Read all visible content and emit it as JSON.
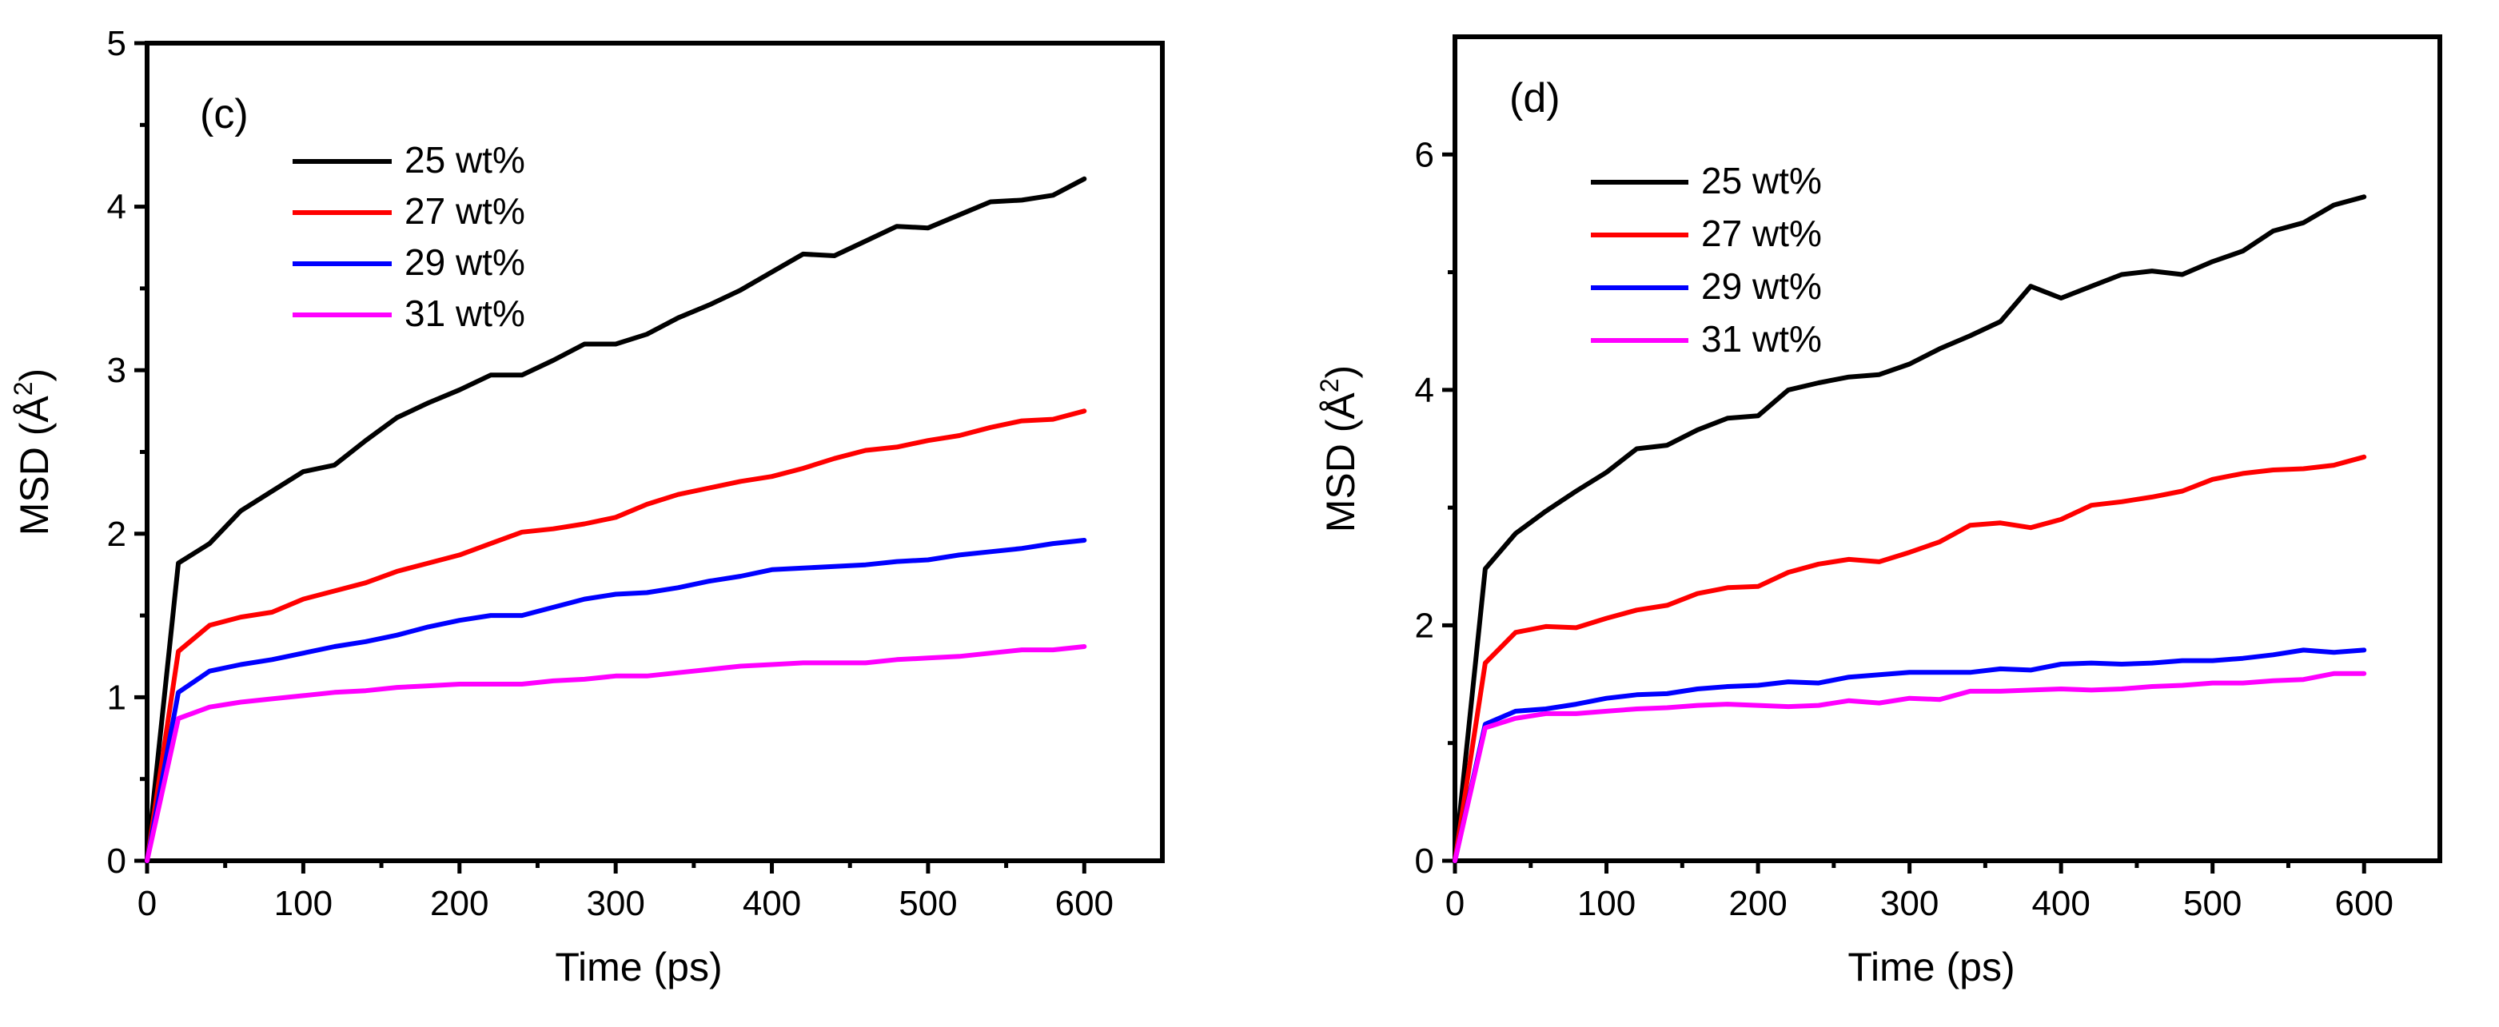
{
  "chart_data": [
    {
      "type": "line",
      "panel_label": "(c)",
      "xlabel": "Time (ps)",
      "ylabel": "MSD (Å²)",
      "ylabel_base": "MSD (Å",
      "ylabel_sup": "2",
      "ylabel_close": ")",
      "xlim": [
        0,
        650
      ],
      "ylim": [
        0,
        5
      ],
      "xticks": [
        0,
        100,
        200,
        300,
        400,
        500,
        600
      ],
      "yticks": [
        0,
        1,
        2,
        3,
        4,
        5
      ],
      "legend_position": "top-left",
      "x": [
        0,
        20,
        40,
        60,
        80,
        100,
        120,
        140,
        160,
        180,
        200,
        220,
        240,
        260,
        280,
        300,
        320,
        340,
        360,
        380,
        400,
        420,
        440,
        460,
        480,
        500,
        520,
        540,
        560,
        580,
        600
      ],
      "series": [
        {
          "name": "25 wt%",
          "color": "#000000",
          "values": [
            0,
            1.82,
            1.94,
            2.14,
            2.26,
            2.38,
            2.42,
            2.57,
            2.71,
            2.8,
            2.88,
            2.97,
            2.97,
            3.06,
            3.16,
            3.16,
            3.22,
            3.32,
            3.4,
            3.49,
            3.6,
            3.71,
            3.7,
            3.79,
            3.88,
            3.87,
            3.95,
            4.03,
            4.04,
            4.07,
            4.17
          ]
        },
        {
          "name": "27 wt%",
          "color": "#ff0000",
          "values": [
            0,
            1.28,
            1.44,
            1.49,
            1.52,
            1.6,
            1.65,
            1.7,
            1.77,
            1.82,
            1.87,
            1.94,
            2.01,
            2.03,
            2.06,
            2.1,
            2.18,
            2.24,
            2.28,
            2.32,
            2.35,
            2.4,
            2.46,
            2.51,
            2.53,
            2.57,
            2.6,
            2.65,
            2.69,
            2.7,
            2.75
          ]
        },
        {
          "name": "29 wt%",
          "color": "#0000ff",
          "values": [
            0,
            1.03,
            1.16,
            1.2,
            1.23,
            1.27,
            1.31,
            1.34,
            1.38,
            1.43,
            1.47,
            1.5,
            1.5,
            1.55,
            1.6,
            1.63,
            1.64,
            1.67,
            1.71,
            1.74,
            1.78,
            1.79,
            1.8,
            1.81,
            1.83,
            1.84,
            1.87,
            1.89,
            1.91,
            1.94,
            1.96
          ]
        },
        {
          "name": "31 wt%",
          "color": "#ff00ff",
          "values": [
            0,
            0.87,
            0.94,
            0.97,
            0.99,
            1.01,
            1.03,
            1.04,
            1.06,
            1.07,
            1.08,
            1.08,
            1.08,
            1.1,
            1.11,
            1.13,
            1.13,
            1.15,
            1.17,
            1.19,
            1.2,
            1.21,
            1.21,
            1.21,
            1.23,
            1.24,
            1.25,
            1.27,
            1.29,
            1.29,
            1.31
          ]
        }
      ]
    },
    {
      "type": "line",
      "panel_label": "(d)",
      "xlabel": "Time (ps)",
      "ylabel": "MSD (Å²)",
      "ylabel_base": "MSD (Å",
      "ylabel_sup": "2",
      "ylabel_close": ")",
      "xlim": [
        0,
        650
      ],
      "ylim": [
        0,
        7
      ],
      "xticks": [
        0,
        100,
        200,
        300,
        400,
        500,
        600
      ],
      "yticks": [
        0,
        2,
        4,
        6
      ],
      "legend_position": "top-left",
      "x": [
        0,
        20,
        40,
        60,
        80,
        100,
        120,
        140,
        160,
        180,
        200,
        220,
        240,
        260,
        280,
        300,
        320,
        340,
        360,
        380,
        400,
        420,
        440,
        460,
        480,
        500,
        520,
        540,
        560,
        580,
        600
      ],
      "series": [
        {
          "name": "25 wt%",
          "color": "#000000",
          "values": [
            0,
            2.48,
            2.78,
            2.97,
            3.14,
            3.3,
            3.5,
            3.53,
            3.66,
            3.76,
            3.78,
            4.0,
            4.06,
            4.11,
            4.13,
            4.22,
            4.35,
            4.46,
            4.58,
            4.88,
            4.78,
            4.88,
            4.98,
            5.01,
            4.98,
            5.09,
            5.18,
            5.35,
            5.42,
            5.57,
            5.64
          ]
        },
        {
          "name": "27 wt%",
          "color": "#ff0000",
          "values": [
            0,
            1.68,
            1.94,
            1.99,
            1.98,
            2.06,
            2.13,
            2.17,
            2.27,
            2.32,
            2.33,
            2.45,
            2.52,
            2.56,
            2.54,
            2.62,
            2.71,
            2.85,
            2.87,
            2.83,
            2.9,
            3.02,
            3.05,
            3.09,
            3.14,
            3.24,
            3.29,
            3.32,
            3.33,
            3.36,
            3.43
          ]
        },
        {
          "name": "29 wt%",
          "color": "#0000ff",
          "values": [
            0,
            1.16,
            1.27,
            1.29,
            1.33,
            1.38,
            1.41,
            1.42,
            1.46,
            1.48,
            1.49,
            1.52,
            1.51,
            1.56,
            1.58,
            1.6,
            1.6,
            1.6,
            1.63,
            1.62,
            1.67,
            1.68,
            1.67,
            1.68,
            1.7,
            1.7,
            1.72,
            1.75,
            1.79,
            1.77,
            1.79
          ]
        },
        {
          "name": "31 wt%",
          "color": "#ff00ff",
          "values": [
            0,
            1.13,
            1.21,
            1.25,
            1.25,
            1.27,
            1.29,
            1.3,
            1.32,
            1.33,
            1.32,
            1.31,
            1.32,
            1.36,
            1.34,
            1.38,
            1.37,
            1.44,
            1.44,
            1.45,
            1.46,
            1.45,
            1.46,
            1.48,
            1.49,
            1.51,
            1.51,
            1.53,
            1.54,
            1.59,
            1.59
          ]
        }
      ]
    }
  ]
}
